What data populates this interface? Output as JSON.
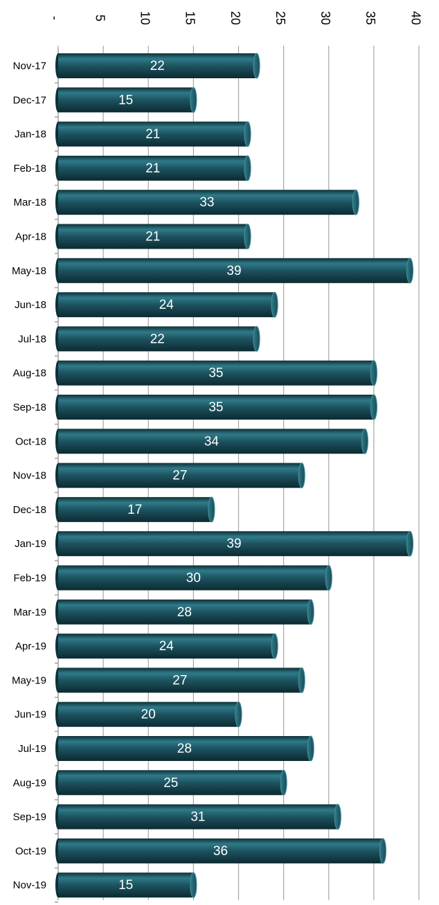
{
  "chart_data": {
    "type": "bar",
    "orientation": "horizontal",
    "title": "",
    "xlabel": "",
    "ylabel": "",
    "categories": [
      "Nov-17",
      "Dec-17",
      "Jan-18",
      "Feb-18",
      "Mar-18",
      "Apr-18",
      "May-18",
      "Jun-18",
      "Jul-18",
      "Aug-18",
      "Sep-18",
      "Oct-18",
      "Nov-18",
      "Dec-18",
      "Jan-19",
      "Feb-19",
      "Mar-19",
      "Apr-19",
      "May-19",
      "Jun-19",
      "Jul-19",
      "Aug-19",
      "Sep-19",
      "Oct-19",
      "Nov-19"
    ],
    "values": [
      22,
      15,
      21,
      21,
      33,
      21,
      39,
      24,
      22,
      35,
      35,
      34,
      27,
      17,
      39,
      30,
      28,
      24,
      27,
      20,
      28,
      25,
      31,
      36,
      15
    ],
    "xlim": [
      0,
      40
    ],
    "x_ticks": [
      0,
      5,
      10,
      15,
      20,
      25,
      30,
      35,
      40
    ],
    "x_tick_labels": [
      "-",
      "5",
      "10",
      "15",
      "20",
      "25",
      "30",
      "35",
      "40"
    ],
    "tick_label_rotation": "rotated 90 degrees clockwise",
    "grid": true,
    "legend": "none",
    "bar_color": "#1d5360",
    "bar_highlight_color": "#2f7a88",
    "bar_shadow_color": "#0e3038",
    "data_label_color": "#ffffff"
  }
}
